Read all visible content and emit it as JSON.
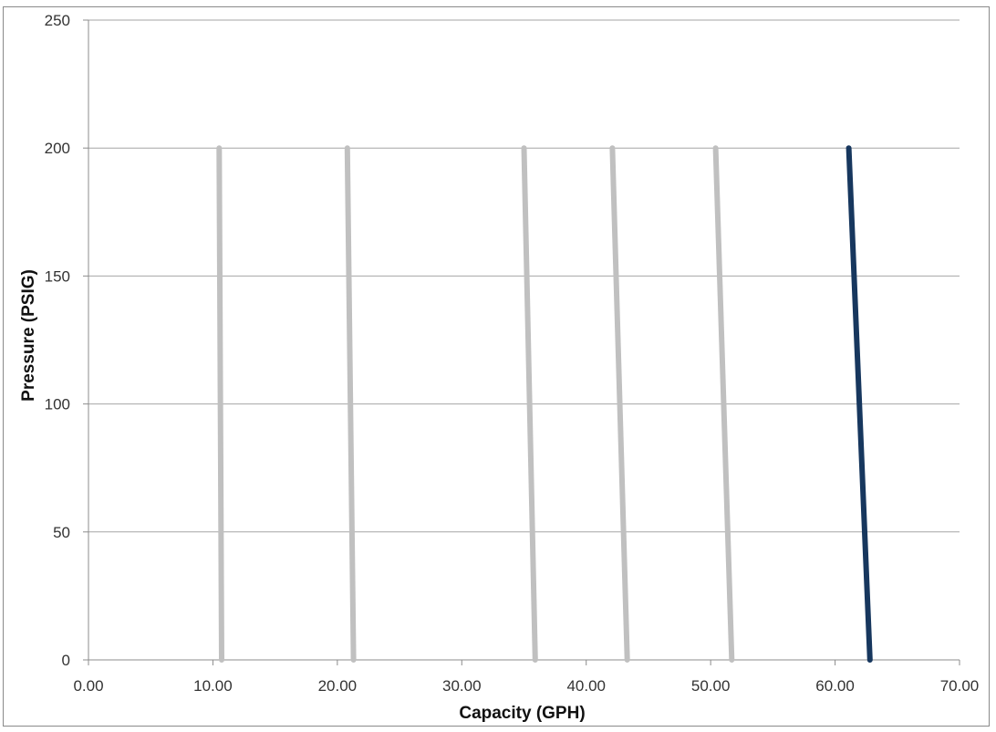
{
  "chart_data": {
    "type": "line",
    "xlabel": "Capacity (GPH)",
    "ylabel": "Pressure (PSIG)",
    "xlim": [
      0,
      70
    ],
    "ylim": [
      0,
      250
    ],
    "x_ticks": [
      "0.00",
      "10.00",
      "20.00",
      "30.00",
      "40.00",
      "50.00",
      "60.00",
      "70.00"
    ],
    "y_ticks": [
      "0",
      "50",
      "100",
      "150",
      "200",
      "250"
    ],
    "grid": "horizontal",
    "legend": "none",
    "colors": {
      "muted": "#c0c0c0",
      "highlight": "#17375e",
      "grid": "#a6a6a6",
      "axis": "#8c8c8c"
    },
    "series": [
      {
        "x": [
          10.5,
          10.7
        ],
        "y": [
          200,
          0
        ],
        "color": "#c0c0c0"
      },
      {
        "x": [
          20.8,
          21.3
        ],
        "y": [
          200,
          0
        ],
        "color": "#c0c0c0"
      },
      {
        "x": [
          35.0,
          35.9
        ],
        "y": [
          200,
          0
        ],
        "color": "#c0c0c0"
      },
      {
        "x": [
          42.1,
          43.3
        ],
        "y": [
          200,
          0
        ],
        "color": "#c0c0c0"
      },
      {
        "x": [
          50.4,
          51.7
        ],
        "y": [
          200,
          0
        ],
        "color": "#c0c0c0"
      },
      {
        "x": [
          61.1,
          62.8
        ],
        "y": [
          200,
          0
        ],
        "color": "#17375e"
      }
    ]
  }
}
